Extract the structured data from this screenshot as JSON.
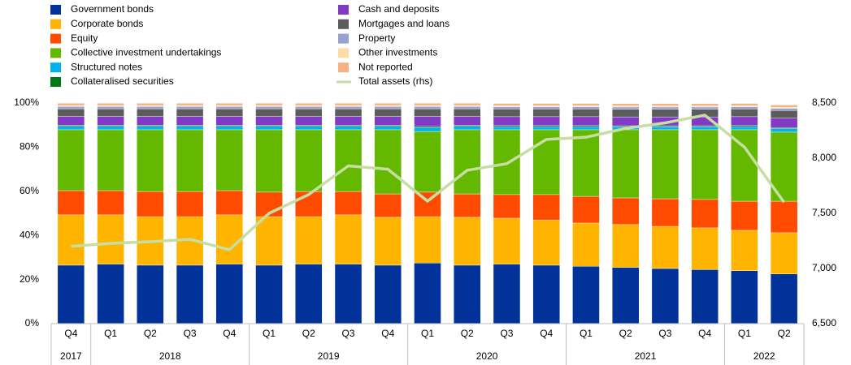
{
  "chart_data": {
    "type": "bar",
    "stacked": true,
    "categories": [
      "Q4",
      "Q1",
      "Q2",
      "Q3",
      "Q4",
      "Q1",
      "Q2",
      "Q3",
      "Q4",
      "Q1",
      "Q2",
      "Q3",
      "Q4",
      "Q1",
      "Q2",
      "Q3",
      "Q4",
      "Q1",
      "Q2"
    ],
    "year_labels": [
      "2017",
      "2018",
      null,
      null,
      null,
      "2019",
      null,
      null,
      null,
      "2020",
      null,
      null,
      null,
      "2021",
      null,
      null,
      null,
      "2022",
      null
    ],
    "series": [
      {
        "name": "Government bonds",
        "color": "#003299",
        "values": [
          26.5,
          27,
          26.5,
          26.5,
          27,
          26.5,
          27,
          27,
          26.5,
          27.5,
          26.5,
          27,
          26.5,
          26,
          25.5,
          25,
          24.5,
          24,
          22.5
        ]
      },
      {
        "name": "Corporate bonds",
        "color": "#ffb400",
        "values": [
          22.8,
          22.3,
          22,
          22,
          22.3,
          22,
          21.5,
          22.3,
          21.7,
          21,
          21.7,
          20.8,
          20.5,
          19.6,
          19.4,
          19.1,
          18.9,
          18.3,
          18.7
        ]
      },
      {
        "name": "Equity",
        "color": "#ff4b00",
        "values": [
          11,
          11,
          11.4,
          11.4,
          11,
          11.1,
          11.4,
          10.6,
          10.6,
          11.1,
          10.6,
          10.7,
          11.5,
          12.1,
          12.1,
          12.5,
          12.9,
          13.2,
          14.3
        ]
      },
      {
        "name": "Collective investment undertakings",
        "color": "#65b800",
        "values": [
          27.6,
          27.6,
          28,
          28,
          27.6,
          28.3,
          28,
          28,
          29.1,
          27.5,
          29.1,
          29.4,
          29.4,
          30.2,
          30.9,
          31.3,
          31.6,
          32.4,
          31.3
        ]
      },
      {
        "name": "Structured notes",
        "color": "#00b1ea",
        "values": [
          1.5,
          1.5,
          1.5,
          1.5,
          1.5,
          1.5,
          1.5,
          1.5,
          1.5,
          1.8,
          1.5,
          1.4,
          1.4,
          1.4,
          1.3,
          1.3,
          1.3,
          1.4,
          1.6
        ]
      },
      {
        "name": "Collateralised securities",
        "color": "#007816",
        "values": [
          0.5,
          0.5,
          0.5,
          0.5,
          0.5,
          0.5,
          0.5,
          0.5,
          0.5,
          0.5,
          0.5,
          0.5,
          0.5,
          0.5,
          0.5,
          0.5,
          0.5,
          0.5,
          0.5
        ]
      },
      {
        "name": "Cash and deposits",
        "color": "#8139c6",
        "values": [
          4,
          4,
          4,
          4,
          4,
          4,
          4,
          4,
          4,
          4.5,
          4,
          4,
          4,
          4,
          4,
          4,
          4,
          4,
          4.2
        ]
      },
      {
        "name": "Mortgages and loans",
        "color": "#5c5c5c",
        "values": [
          3.5,
          3.5,
          3.5,
          3.5,
          3.5,
          3.5,
          3.5,
          3.5,
          3.5,
          3.5,
          3.5,
          3.5,
          3.5,
          3.5,
          3.5,
          3.5,
          3.5,
          3.5,
          3.5
        ]
      },
      {
        "name": "Property",
        "color": "#98a1d0",
        "values": [
          1,
          1,
          1,
          1,
          1,
          1,
          1,
          1,
          1,
          1,
          1,
          1,
          1,
          1,
          1,
          1,
          1,
          1,
          1
        ]
      },
      {
        "name": "Other investments",
        "color": "#fdddA7",
        "values": [
          0.5,
          0.5,
          0.5,
          0.5,
          0.5,
          0.5,
          0.5,
          0.5,
          0.5,
          0.5,
          0.5,
          0.5,
          0.5,
          0.5,
          0.5,
          0.5,
          0.5,
          0.5,
          0.5
        ]
      },
      {
        "name": "Not reported",
        "color": "#f6b183",
        "values": [
          1,
          1,
          1,
          1,
          1,
          1,
          1,
          1,
          1,
          1,
          1,
          1,
          1,
          1,
          1,
          1,
          1,
          1,
          1
        ]
      },
      {
        "name": "Total assets (rhs)",
        "color": "#c6dea4",
        "type": "line",
        "axis": "y2",
        "values": [
          7200,
          7228,
          7243,
          7265,
          7170,
          7500,
          7670,
          7930,
          7900,
          7610,
          7890,
          7950,
          8170,
          8190,
          8270,
          8320,
          8390,
          8100,
          7600
        ]
      }
    ],
    "ylim": [
      0,
      100
    ],
    "yticks": [
      {
        "value": 0,
        "label": "0%"
      },
      {
        "value": 20,
        "label": "20%"
      },
      {
        "value": 40,
        "label": "40%"
      },
      {
        "value": 60,
        "label": "60%"
      },
      {
        "value": 80,
        "label": "80%"
      },
      {
        "value": 100,
        "label": "100%"
      }
    ],
    "y2lim": [
      6500,
      8500
    ],
    "y2ticks": [
      {
        "value": 6500,
        "label": "6,500"
      },
      {
        "value": 7000,
        "label": "7,000"
      },
      {
        "value": 7500,
        "label": "7,500"
      },
      {
        "value": 8000,
        "label": "8,000"
      },
      {
        "value": 8500,
        "label": "8,500"
      }
    ],
    "grid": false
  }
}
